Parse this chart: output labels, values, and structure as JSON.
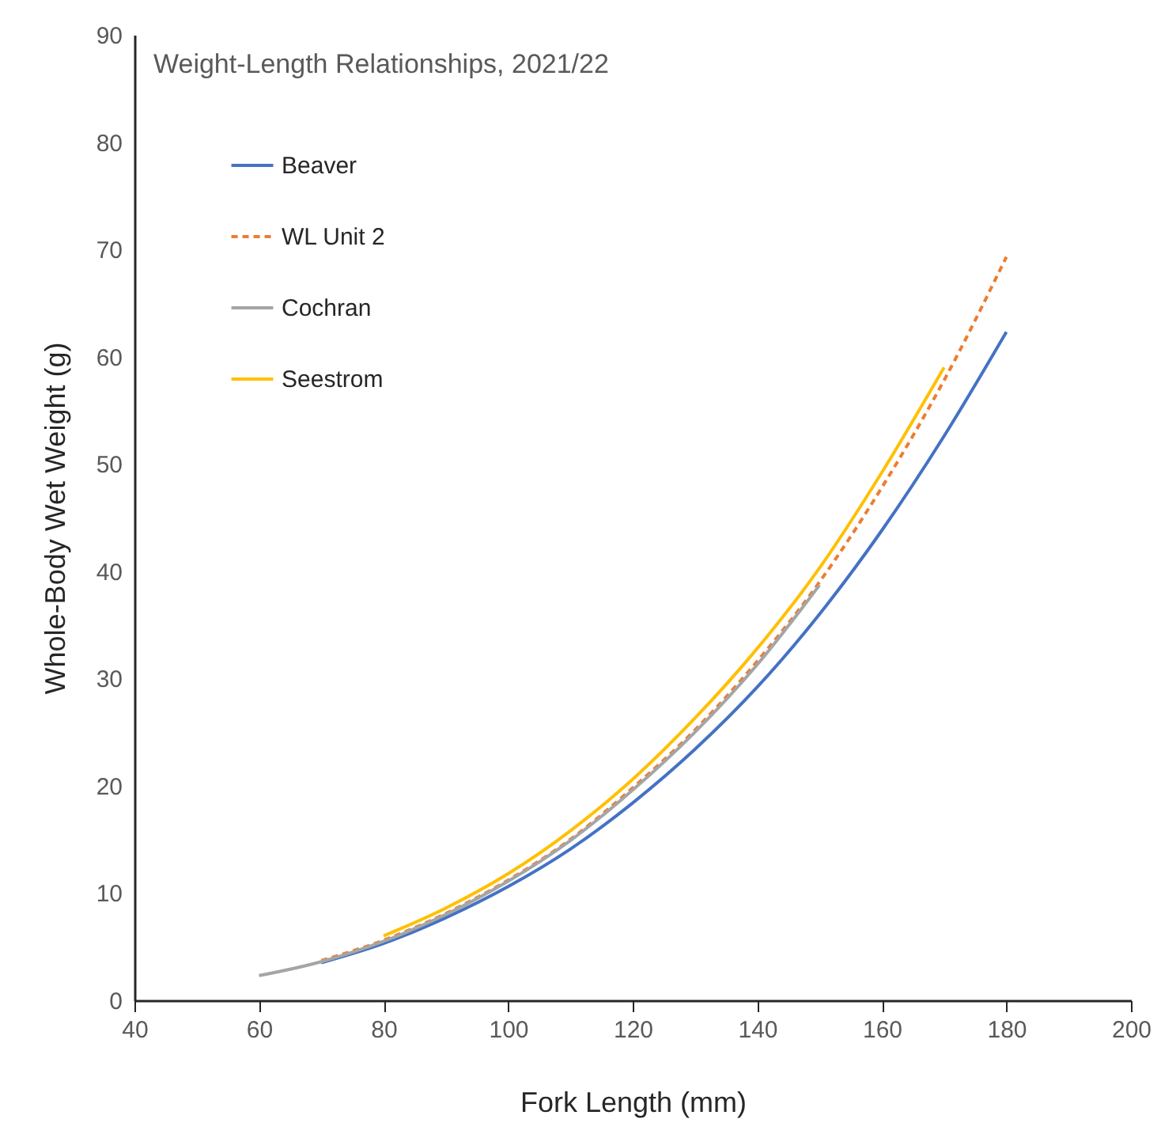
{
  "chart_data": {
    "type": "line",
    "title": "Weight-Length Relationships, 2021/22",
    "xlabel": "Fork Length (mm)",
    "ylabel": "Whole-Body Wet Weight (g)",
    "xlim": [
      40,
      200
    ],
    "xticks": [
      40,
      60,
      80,
      100,
      120,
      140,
      160,
      180,
      200
    ],
    "ylim": [
      0,
      90
    ],
    "yticks": [
      0,
      10,
      20,
      30,
      40,
      50,
      60,
      70,
      80,
      90
    ],
    "grid": false,
    "legend": "top left",
    "marker": "none",
    "series": [
      {
        "name": "Beaver",
        "color": "#4472c4",
        "line_style": "solid",
        "x": [
          70,
          80,
          90,
          100,
          110,
          120,
          130,
          140,
          150,
          160,
          170,
          180
        ],
        "values": [
          3.5,
          5.3,
          7.7,
          10.6,
          14.1,
          18.4,
          23.4,
          29.2,
          36.0,
          43.8,
          52.6,
          62.3
        ]
      },
      {
        "name": "WL Unit 2",
        "color": "#ed7d31",
        "line_style": "dashed",
        "x": [
          70,
          80,
          90,
          100,
          110,
          120,
          130,
          140,
          150,
          160,
          170,
          180
        ],
        "values": [
          3.7,
          5.6,
          8.1,
          11.2,
          15.0,
          19.8,
          25.2,
          31.6,
          39.0,
          47.8,
          57.8,
          69.3
        ]
      },
      {
        "name": "Cochran",
        "color": "#a5a5a5",
        "line_style": "solid",
        "x": [
          60,
          70,
          80,
          90,
          100,
          110,
          120,
          130,
          140,
          150
        ],
        "values": [
          2.3,
          3.6,
          5.5,
          8.0,
          11.1,
          14.9,
          19.6,
          25.0,
          31.3,
          38.7
        ]
      },
      {
        "name": "Seestrom",
        "color": "#ffc000",
        "line_style": "solid",
        "x": [
          80,
          90,
          100,
          110,
          120,
          130,
          140,
          150,
          160,
          170
        ],
        "values": [
          6.0,
          8.6,
          11.8,
          15.8,
          20.6,
          26.3,
          32.8,
          40.3,
          49.2,
          59.0
        ]
      }
    ]
  }
}
